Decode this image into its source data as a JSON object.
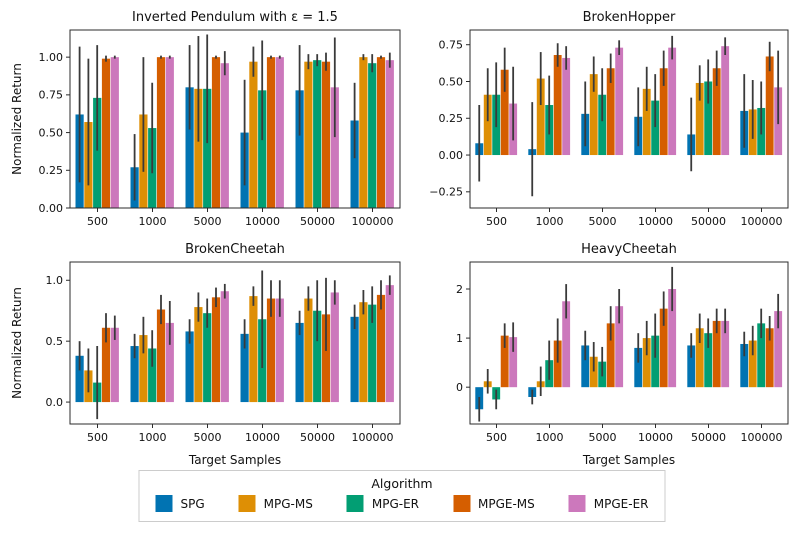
{
  "figure": {
    "legend": {
      "title": "Algorithm",
      "entries": [
        {
          "label": "SPG",
          "color": "#0173B2"
        },
        {
          "label": "MPG-MS",
          "color": "#DE8F05"
        },
        {
          "label": "MPG-ER",
          "color": "#029E73"
        },
        {
          "label": "MPGE-MS",
          "color": "#D55E00"
        },
        {
          "label": "MPGE-ER",
          "color": "#CC78BC"
        }
      ],
      "errorbar_color": "#3a3a3a"
    }
  },
  "chart_data": [
    {
      "type": "bar",
      "title": "Inverted Pendulum with ε = 1.5",
      "xlabel": "",
      "ylabel": "Normalized Return",
      "categories": [
        "500",
        "1000",
        "5000",
        "10000",
        "50000",
        "100000"
      ],
      "ylim": [
        0,
        1.18
      ],
      "yticks": [
        0,
        0.25,
        0.5,
        0.75,
        1.0
      ],
      "ytick_labels": [
        "0.00",
        "0.25",
        "0.50",
        "0.75",
        "1.00"
      ],
      "grid": false,
      "legend_position": "figure-bottom",
      "series": [
        {
          "name": "SPG",
          "values": [
            0.62,
            0.27,
            0.8,
            0.5,
            0.78,
            0.58
          ],
          "errors": [
            0.45,
            0.22,
            0.28,
            0.35,
            0.3,
            0.25
          ]
        },
        {
          "name": "MPG-MS",
          "values": [
            0.57,
            0.62,
            0.79,
            0.97,
            0.97,
            1.0
          ],
          "errors": [
            0.42,
            0.38,
            0.35,
            0.1,
            0.05,
            0.02
          ]
        },
        {
          "name": "MPG-ER",
          "values": [
            0.73,
            0.53,
            0.79,
            0.78,
            0.98,
            0.96
          ],
          "errors": [
            0.35,
            0.3,
            0.36,
            0.33,
            0.04,
            0.06
          ]
        },
        {
          "name": "MPGE-MS",
          "values": [
            0.99,
            1.0,
            1.0,
            1.0,
            0.97,
            1.0
          ],
          "errors": [
            0.02,
            0.01,
            0.01,
            0.01,
            0.06,
            0.01
          ]
        },
        {
          "name": "MPGE-ER",
          "values": [
            1.0,
            1.0,
            0.96,
            1.0,
            0.8,
            0.98
          ],
          "errors": [
            0.01,
            0.01,
            0.08,
            0.01,
            0.33,
            0.05
          ]
        }
      ]
    },
    {
      "type": "bar",
      "title": "BrokenHopper",
      "xlabel": "",
      "ylabel": "",
      "categories": [
        "500",
        "1000",
        "5000",
        "10000",
        "50000",
        "100000"
      ],
      "ylim": [
        -0.36,
        0.85
      ],
      "yticks": [
        -0.25,
        0,
        0.25,
        0.5,
        0.75
      ],
      "ytick_labels": [
        "−0.25",
        "0.00",
        "0.25",
        "0.50",
        "0.75"
      ],
      "grid": false,
      "legend_position": "figure-bottom",
      "series": [
        {
          "name": "SPG",
          "values": [
            0.08,
            0.04,
            0.28,
            0.26,
            0.14,
            0.3
          ],
          "errors": [
            0.26,
            0.32,
            0.22,
            0.2,
            0.25,
            0.25
          ]
        },
        {
          "name": "MPG-MS",
          "values": [
            0.41,
            0.52,
            0.55,
            0.45,
            0.49,
            0.31
          ],
          "errors": [
            0.18,
            0.18,
            0.12,
            0.15,
            0.12,
            0.2
          ]
        },
        {
          "name": "MPG-ER",
          "values": [
            0.41,
            0.34,
            0.41,
            0.37,
            0.5,
            0.32
          ],
          "errors": [
            0.22,
            0.2,
            0.18,
            0.18,
            0.15,
            0.18
          ]
        },
        {
          "name": "MPGE-MS",
          "values": [
            0.58,
            0.68,
            0.59,
            0.59,
            0.59,
            0.67
          ],
          "errors": [
            0.15,
            0.08,
            0.1,
            0.12,
            0.12,
            0.1
          ]
        },
        {
          "name": "MPGE-ER",
          "values": [
            0.35,
            0.66,
            0.73,
            0.73,
            0.74,
            0.46
          ],
          "errors": [
            0.25,
            0.08,
            0.05,
            0.08,
            0.06,
            0.25
          ]
        }
      ]
    },
    {
      "type": "bar",
      "title": "BrokenCheetah",
      "xlabel": "Target Samples",
      "ylabel": "Normalized Return",
      "categories": [
        "500",
        "1000",
        "5000",
        "10000",
        "50000",
        "100000"
      ],
      "ylim": [
        -0.18,
        1.15
      ],
      "yticks": [
        0,
        0.5,
        1.0
      ],
      "ytick_labels": [
        "0.0",
        "0.5",
        "1.0"
      ],
      "grid": false,
      "legend_position": "figure-bottom",
      "series": [
        {
          "name": "SPG",
          "values": [
            0.38,
            0.46,
            0.58,
            0.56,
            0.65,
            0.7
          ],
          "errors": [
            0.12,
            0.1,
            0.1,
            0.12,
            0.1,
            0.1
          ]
        },
        {
          "name": "MPG-MS",
          "values": [
            0.26,
            0.55,
            0.78,
            0.87,
            0.85,
            0.82
          ],
          "errors": [
            0.18,
            0.15,
            0.12,
            0.08,
            0.1,
            0.1
          ]
        },
        {
          "name": "MPG-ER",
          "values": [
            0.16,
            0.44,
            0.73,
            0.68,
            0.75,
            0.8
          ],
          "errors": [
            0.3,
            0.15,
            0.12,
            0.4,
            0.25,
            0.15
          ]
        },
        {
          "name": "MPGE-MS",
          "values": [
            0.61,
            0.76,
            0.86,
            0.85,
            0.72,
            0.88
          ],
          "errors": [
            0.12,
            0.12,
            0.08,
            0.15,
            0.3,
            0.12
          ]
        },
        {
          "name": "MPGE-ER",
          "values": [
            0.61,
            0.65,
            0.91,
            0.85,
            0.9,
            0.96
          ],
          "errors": [
            0.1,
            0.18,
            0.06,
            0.15,
            0.1,
            0.08
          ]
        }
      ]
    },
    {
      "type": "bar",
      "title": "HeavyCheetah",
      "xlabel": "Target Samples",
      "ylabel": "",
      "categories": [
        "500",
        "1000",
        "5000",
        "10000",
        "50000",
        "100000"
      ],
      "ylim": [
        -0.75,
        2.55
      ],
      "yticks": [
        0,
        1,
        2
      ],
      "ytick_labels": [
        "0",
        "1",
        "2"
      ],
      "grid": false,
      "legend_position": "figure-bottom",
      "series": [
        {
          "name": "SPG",
          "values": [
            -0.45,
            -0.2,
            0.85,
            0.8,
            0.85,
            0.88
          ],
          "errors": [
            0.25,
            0.15,
            0.3,
            0.3,
            0.25,
            0.25
          ]
        },
        {
          "name": "MPG-MS",
          "values": [
            0.12,
            0.12,
            0.62,
            1.0,
            1.2,
            0.95
          ],
          "errors": [
            0.25,
            0.3,
            0.3,
            0.35,
            0.3,
            0.3
          ]
        },
        {
          "name": "MPG-ER",
          "values": [
            -0.25,
            0.55,
            0.52,
            1.05,
            1.1,
            1.3
          ],
          "errors": [
            0.2,
            0.4,
            0.3,
            0.45,
            0.3,
            0.3
          ]
        },
        {
          "name": "MPGE-MS",
          "values": [
            1.05,
            0.95,
            1.3,
            1.6,
            1.35,
            1.2
          ],
          "errors": [
            0.25,
            0.45,
            0.35,
            0.35,
            0.25,
            0.25
          ]
        },
        {
          "name": "MPGE-ER",
          "values": [
            1.02,
            1.75,
            1.65,
            2.0,
            1.35,
            1.55
          ],
          "errors": [
            0.3,
            0.35,
            0.35,
            0.45,
            0.25,
            0.35
          ]
        }
      ]
    }
  ]
}
